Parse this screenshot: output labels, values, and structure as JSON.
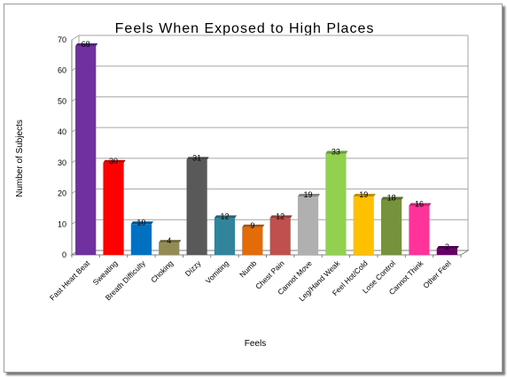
{
  "chart_data": {
    "type": "bar",
    "title": "Feels When Exposed to High Places",
    "xlabel": "Feels",
    "ylabel": "Number of Subjects",
    "ylim": [
      0,
      70
    ],
    "yticks": [
      0,
      10,
      20,
      30,
      40,
      50,
      60,
      70
    ],
    "grid": true,
    "legend": "none",
    "categories": [
      "Fast Heart Beat",
      "Sweating",
      "Breath Difficulty",
      "Choking",
      "Dizzy",
      "Vomiting",
      "Numb",
      "Chest Pain",
      "Cannot Move",
      "Leg/Hand Weak",
      "Feel Hot/Cold",
      "Lose Control",
      "Cannot Think",
      "Other Feel"
    ],
    "values": [
      68,
      30,
      10,
      4,
      31,
      12,
      9,
      12,
      19,
      33,
      19,
      18,
      16,
      2
    ],
    "value_labels": [
      "68",
      "30",
      "10",
      "4",
      "31",
      "12",
      "9",
      "12",
      "19",
      "33",
      "19",
      "18",
      "16",
      "2"
    ],
    "colors": [
      "#7030a0",
      "#ff0000",
      "#0070c0",
      "#948a54",
      "#595959",
      "#31849b",
      "#e36c09",
      "#c0504d",
      "#b0b0b0",
      "#92d050",
      "#ffc000",
      "#76923c",
      "#ff3399",
      "#660066"
    ]
  }
}
